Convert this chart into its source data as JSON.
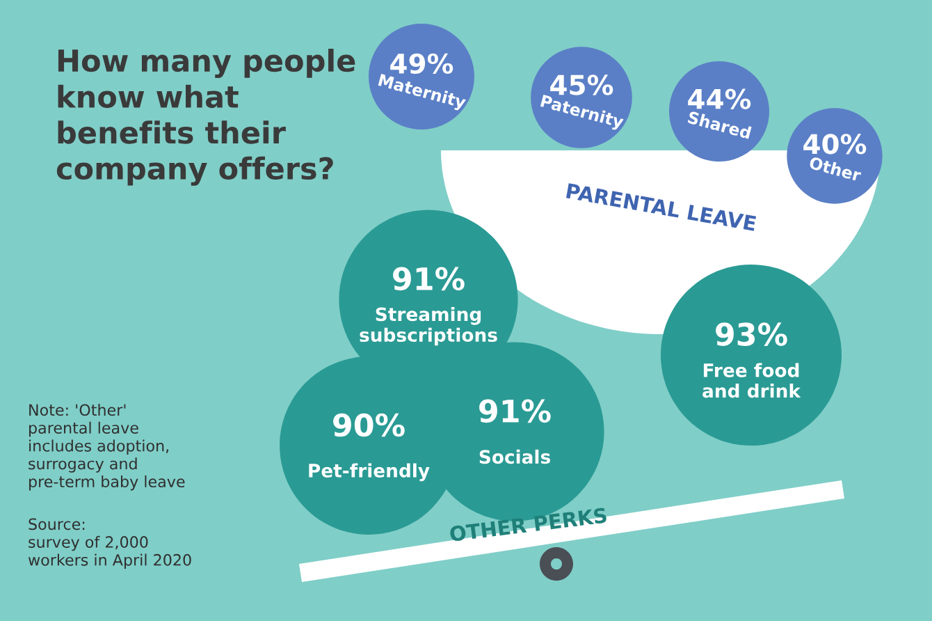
{
  "chart_data": [
    {
      "type": "other",
      "title": "How many people know what benefits their company offers?",
      "categories": [
        "Maternity",
        "Paternity",
        "Shared",
        "Other"
      ],
      "series": [
        {
          "name": "PARENTAL LEAVE",
          "color": "#5a7fc6",
          "values": [
            49,
            45,
            44,
            40
          ],
          "value_labels": [
            "49%",
            "45%",
            "44%",
            "40%"
          ]
        }
      ]
    },
    {
      "type": "other",
      "categories": [
        "Streaming\nsubscriptions",
        "Pet-friendly",
        "Socials",
        "Free food\nand drink"
      ],
      "series": [
        {
          "name": "OTHER PERKS",
          "color": "#2a9a94",
          "values": [
            91,
            90,
            91,
            93
          ],
          "value_labels": [
            "91%",
            "90%",
            "91%",
            "93%"
          ]
        }
      ],
      "annotations": [
        "Note: 'Other'\nparental leave\nincludes adoption,\nsurrogacy and\npre-term baby leave",
        "Source:\nsurvey of 2,000\nworkers in April 2020"
      ]
    }
  ]
}
